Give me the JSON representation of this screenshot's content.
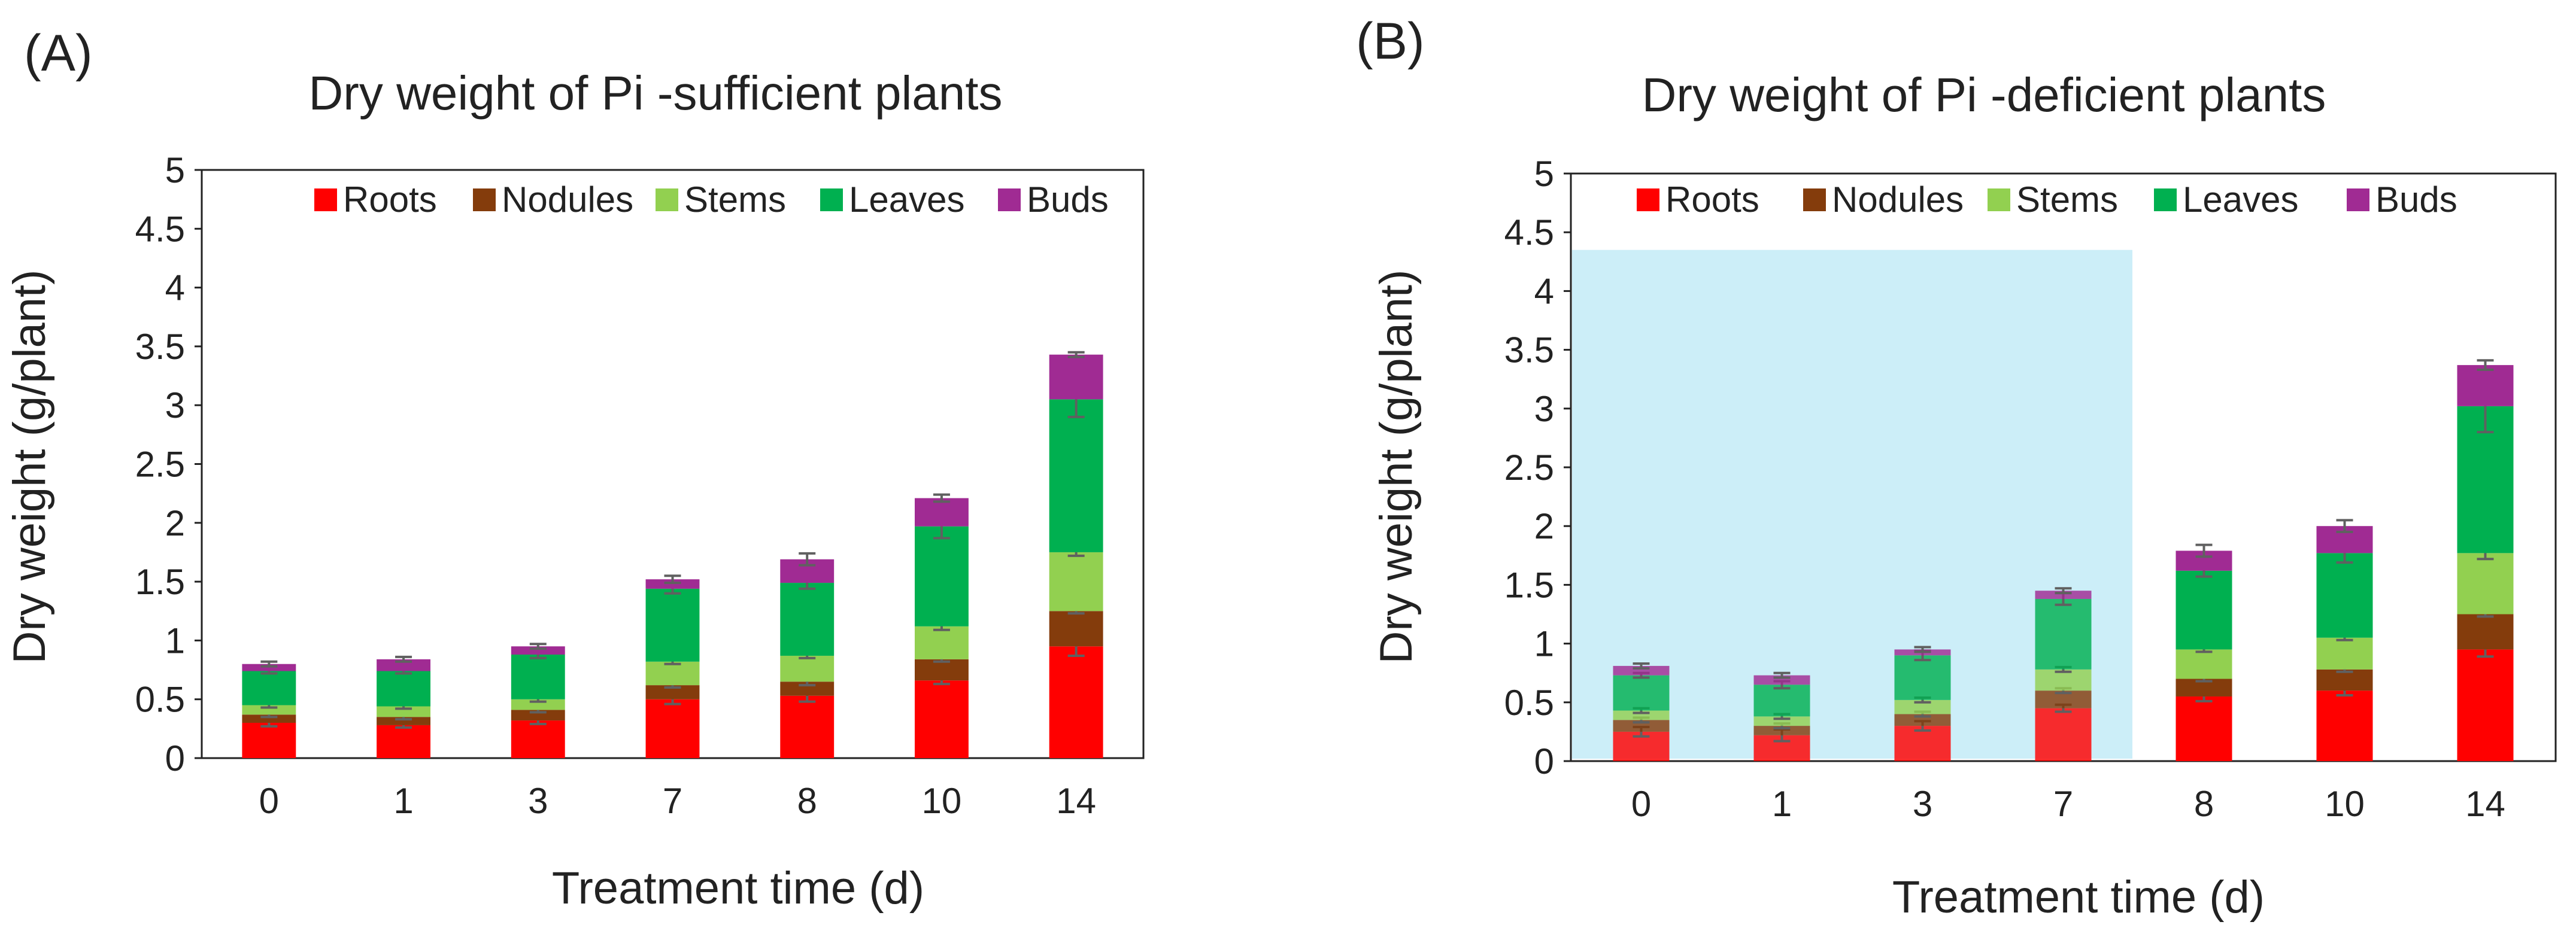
{
  "figure": {
    "colors": {
      "roots": "#ff0000",
      "nodules": "#843c0c",
      "stems": "#92d050",
      "leaves": "#00b050",
      "buds": "#a02b93",
      "highlight": "#cceef8",
      "errorbar": "#606060"
    }
  },
  "chart_data": [
    {
      "type": "bar",
      "stacked": true,
      "panel": "(A)",
      "title": "Dry weight of Pi -sufficient plants",
      "xlabel": "Treatment time (d)",
      "ylabel": "Dry weight (g/plant)",
      "ylim": [
        0,
        5
      ],
      "yticks": [
        "0",
        "0.5",
        "1",
        "1.5",
        "2",
        "2.5",
        "3",
        "3.5",
        "4",
        "4.5",
        "5"
      ],
      "categories": [
        "0",
        "1",
        "3",
        "7",
        "8",
        "10",
        "14"
      ],
      "legend_position": "top-right",
      "series": [
        {
          "name": "Roots",
          "color_key": "roots",
          "values": [
            0.3,
            0.28,
            0.32,
            0.5,
            0.53,
            0.66,
            0.95
          ],
          "errors": [
            0.03,
            0.02,
            0.03,
            0.04,
            0.05,
            0.03,
            0.08
          ]
        },
        {
          "name": "Nodules",
          "color_key": "nodules",
          "values": [
            0.07,
            0.07,
            0.09,
            0.12,
            0.12,
            0.18,
            0.3
          ],
          "errors": [
            0.02,
            0.02,
            0.02,
            0.02,
            0.03,
            0.02,
            0.02
          ]
        },
        {
          "name": "Stems",
          "color_key": "stems",
          "values": [
            0.08,
            0.09,
            0.09,
            0.2,
            0.22,
            0.28,
            0.5
          ],
          "errors": [
            0.02,
            0.02,
            0.02,
            0.02,
            0.02,
            0.03,
            0.03
          ]
        },
        {
          "name": "Leaves",
          "color_key": "leaves",
          "values": [
            0.29,
            0.3,
            0.38,
            0.62,
            0.62,
            0.85,
            1.3
          ],
          "errors": [
            0.02,
            0.02,
            0.03,
            0.04,
            0.05,
            0.1,
            0.15
          ]
        },
        {
          "name": "Buds",
          "color_key": "buds",
          "values": [
            0.06,
            0.1,
            0.07,
            0.08,
            0.2,
            0.24,
            0.38
          ],
          "errors": [
            0.02,
            0.02,
            0.02,
            0.03,
            0.05,
            0.03,
            0.02
          ]
        }
      ]
    },
    {
      "type": "bar",
      "stacked": true,
      "panel": "(B)",
      "title": "Dry weight of Pi -deficient plants",
      "xlabel": "Treatment time (d)",
      "ylabel": "Dry weight (g/plant)",
      "ylim": [
        0,
        5
      ],
      "yticks": [
        "0",
        "0.5",
        "1",
        "1.5",
        "2",
        "2.5",
        "3",
        "3.5",
        "4",
        "4.5",
        "5"
      ],
      "categories": [
        "0",
        "1",
        "3",
        "7",
        "8",
        "10",
        "14"
      ],
      "legend_position": "top-right",
      "highlight": {
        "from_category": "0",
        "to_category": "7",
        "y_top": 4.35
      },
      "series": [
        {
          "name": "Roots",
          "color_key": "roots",
          "values": [
            0.25,
            0.22,
            0.3,
            0.45,
            0.55,
            0.6,
            0.95
          ],
          "errors": [
            0.04,
            0.05,
            0.04,
            0.03,
            0.04,
            0.04,
            0.06
          ]
        },
        {
          "name": "Nodules",
          "color_key": "nodules",
          "values": [
            0.1,
            0.08,
            0.1,
            0.15,
            0.15,
            0.18,
            0.3
          ],
          "errors": [
            0.02,
            0.02,
            0.02,
            0.02,
            0.02,
            0.02,
            0.02
          ]
        },
        {
          "name": "Stems",
          "color_key": "stems",
          "values": [
            0.08,
            0.08,
            0.12,
            0.18,
            0.25,
            0.27,
            0.52
          ],
          "errors": [
            0.02,
            0.02,
            0.02,
            0.02,
            0.02,
            0.02,
            0.05
          ]
        },
        {
          "name": "Leaves",
          "color_key": "leaves",
          "values": [
            0.3,
            0.27,
            0.38,
            0.6,
            0.67,
            0.72,
            1.25
          ],
          "errors": [
            0.02,
            0.03,
            0.04,
            0.05,
            0.05,
            0.08,
            0.22
          ]
        },
        {
          "name": "Buds",
          "color_key": "buds",
          "values": [
            0.08,
            0.08,
            0.05,
            0.07,
            0.17,
            0.23,
            0.35
          ],
          "errors": [
            0.02,
            0.02,
            0.02,
            0.02,
            0.05,
            0.05,
            0.04
          ]
        }
      ]
    }
  ]
}
